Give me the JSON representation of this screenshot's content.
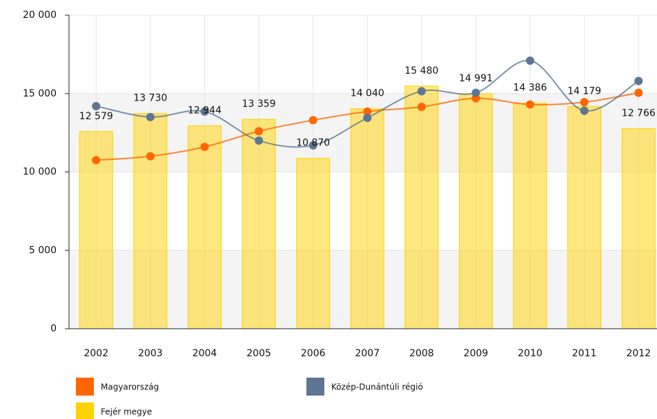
{
  "chart_data": {
    "type": "combo",
    "categories": [
      "2002",
      "2003",
      "2004",
      "2005",
      "2006",
      "2007",
      "2008",
      "2009",
      "2010",
      "2011",
      "2012"
    ],
    "series": [
      {
        "name": "Magyarország",
        "type": "line",
        "color": "#ff6600",
        "values": [
          10750,
          11000,
          11600,
          12600,
          13300,
          13850,
          14150,
          14700,
          14300,
          14450,
          15050
        ]
      },
      {
        "name": "Közép-Dunántúli régió",
        "type": "line",
        "color": "#5e7594",
        "values": [
          14200,
          13500,
          13850,
          12000,
          11700,
          13450,
          15150,
          15050,
          17100,
          13900,
          15800
        ]
      },
      {
        "name": "Fejér megye",
        "type": "bar",
        "color": "#ffd200",
        "values": [
          12579,
          13730,
          12944,
          13359,
          10870,
          14040,
          15480,
          14991,
          14386,
          14179,
          12766
        ],
        "value_labels": [
          "12 579",
          "13 730",
          "12 944",
          "13 359",
          "10 870",
          "14 040",
          "15 480",
          "14 991",
          "14 386",
          "14 179",
          "12 766"
        ]
      }
    ],
    "ylim": [
      0,
      20000
    ],
    "yticks": [
      {
        "value": 0,
        "label": "0"
      },
      {
        "value": 5000,
        "label": "5 000"
      },
      {
        "value": 10000,
        "label": "10 000"
      },
      {
        "value": 15000,
        "label": "15 000"
      },
      {
        "value": 20000,
        "label": "20 000"
      }
    ],
    "grid": true
  }
}
